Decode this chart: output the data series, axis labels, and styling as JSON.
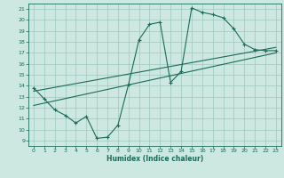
{
  "xlabel": "Humidex (Indice chaleur)",
  "bg_color": "#cce8e0",
  "grid_color": "#a0c8bc",
  "line_color": "#1a6b5a",
  "xlim": [
    -0.5,
    23.5
  ],
  "ylim": [
    8.5,
    21.5
  ],
  "yticks": [
    9,
    10,
    11,
    12,
    13,
    14,
    15,
    16,
    17,
    18,
    19,
    20,
    21
  ],
  "xticks": [
    0,
    1,
    2,
    3,
    4,
    5,
    6,
    7,
    8,
    9,
    10,
    11,
    12,
    13,
    14,
    15,
    16,
    17,
    18,
    19,
    20,
    21,
    22,
    23
  ],
  "curve_x": [
    0,
    1,
    2,
    3,
    4,
    5,
    6,
    7,
    8,
    9,
    10,
    11,
    12,
    13,
    14,
    15,
    16,
    17,
    18,
    19,
    20,
    21,
    22,
    23
  ],
  "curve_y": [
    13.8,
    12.8,
    11.8,
    11.3,
    10.6,
    11.2,
    9.2,
    9.3,
    10.4,
    14.1,
    18.2,
    19.6,
    19.8,
    14.3,
    15.3,
    21.1,
    20.7,
    20.5,
    20.2,
    19.2,
    17.8,
    17.3,
    17.2,
    17.2
  ],
  "trend1_x": [
    0,
    23
  ],
  "trend1_y": [
    12.2,
    17.0
  ],
  "trend2_x": [
    0,
    23
  ],
  "trend2_y": [
    13.5,
    17.5
  ]
}
